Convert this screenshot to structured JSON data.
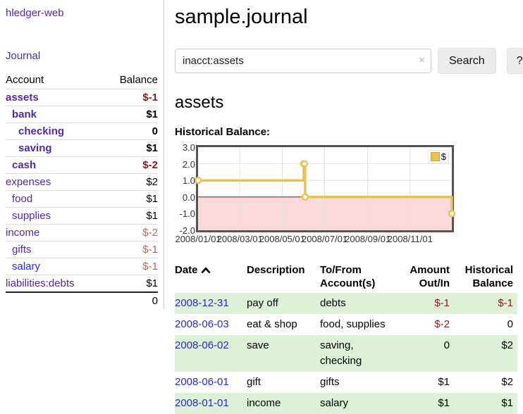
{
  "colors": {
    "purple": "#5229a3",
    "blue": "#2a2ad4",
    "neg-strong": "#8b1a1a",
    "neg-light": "#b06a66",
    "stripe-green": "#def0d8",
    "chart-line": "#e9c351",
    "chart-neg-fill": "#f9d9d9",
    "chart-zero-line": "#8b1a1a"
  },
  "app": {
    "brand": "hledger-web",
    "nav_journal": "Journal"
  },
  "sidebar": {
    "header": {
      "account": "Account",
      "balance": "Balance"
    },
    "rows": [
      {
        "name": "assets",
        "balance": "$-1",
        "depth": 1,
        "bold": true,
        "link": "visited"
      },
      {
        "name": "bank",
        "balance": "$1",
        "depth": 2,
        "bold": true,
        "link": "visited"
      },
      {
        "name": "checking",
        "balance": "0",
        "depth": 3,
        "bold": true,
        "link": "visited"
      },
      {
        "name": "saving",
        "balance": "$1",
        "depth": 3,
        "bold": true,
        "link": "visited"
      },
      {
        "name": "cash",
        "balance": "$-2",
        "depth": 2,
        "bold": true,
        "link": "visited"
      },
      {
        "name": "expenses",
        "balance": "$2",
        "depth": 1,
        "bold": false,
        "link": "visited"
      },
      {
        "name": "food",
        "balance": "$1",
        "depth": 2,
        "bold": false,
        "link": "visited"
      },
      {
        "name": "supplies",
        "balance": "$1",
        "depth": 2,
        "bold": false,
        "link": "visited"
      },
      {
        "name": "income",
        "balance": "$-2",
        "depth": 1,
        "bold": false,
        "link": "visited"
      },
      {
        "name": "gifts",
        "balance": "$-1",
        "depth": 2,
        "bold": false,
        "link": "visited"
      },
      {
        "name": "salary",
        "balance": "$-1",
        "depth": 2,
        "bold": false,
        "link": "unvisited"
      },
      {
        "name": "liabilities:debts",
        "balance": "$1",
        "depth": 1,
        "bold": false,
        "link": "visited"
      }
    ],
    "total": "0"
  },
  "main": {
    "title": "sample.journal",
    "search": {
      "value": "inacct:assets",
      "clear_icon": "×",
      "button_label": "Search",
      "help_label": "?"
    },
    "account_heading": "assets",
    "chart_label": "Historical Balance:"
  },
  "chart_data": {
    "type": "line",
    "step": "after",
    "title": "Historical Balance",
    "legend": [
      {
        "label": "$"
      }
    ],
    "x_range": [
      "2008-01-01",
      "2008-12-31"
    ],
    "ylim": [
      -2,
      3
    ],
    "grid": true,
    "negative_region_shaded": true,
    "x_ticks": [
      {
        "date": "2008-01-01",
        "label": "2008/01/01"
      },
      {
        "date": "2008-03-01",
        "label": "2008/03/01"
      },
      {
        "date": "2008-05-01",
        "label": "2008/05/01"
      },
      {
        "date": "2008-07-01",
        "label": "2008/07/01"
      },
      {
        "date": "2008-09-01",
        "label": "2008/09/01"
      },
      {
        "date": "2008-11-01",
        "label": "2008/11/01"
      }
    ],
    "y_ticks": [
      {
        "value": 3,
        "label": "3.0"
      },
      {
        "value": 2,
        "label": "2.0"
      },
      {
        "value": 1,
        "label": "1.0"
      },
      {
        "value": 0,
        "label": "0.0"
      },
      {
        "value": -1,
        "label": "-1.0"
      },
      {
        "value": -2,
        "label": "-2.0"
      }
    ],
    "series": [
      {
        "name": "$",
        "points": [
          {
            "date": "2008-01-01",
            "value": 1
          },
          {
            "date": "2008-06-01",
            "value": 2
          },
          {
            "date": "2008-06-02",
            "value": 2
          },
          {
            "date": "2008-06-03",
            "value": 0
          },
          {
            "date": "2008-12-31",
            "value": -1
          }
        ]
      }
    ]
  },
  "register": {
    "sort_icon": "chevron-up",
    "headers": {
      "date": {
        "line1": "Date",
        "line2": ""
      },
      "description": {
        "line1": "Description",
        "line2": ""
      },
      "accounts": {
        "line1": "To/From",
        "line2": "Account(s)"
      },
      "amount": {
        "line1": "Amount",
        "line2": "Out/In"
      },
      "balance": {
        "line1": "Historical",
        "line2": "Balance"
      }
    },
    "rows": [
      {
        "date": "2008-12-31",
        "description": "pay off",
        "accounts": "debts",
        "amount": "$-1",
        "balance": "$-1"
      },
      {
        "date": "2008-06-03",
        "description": "eat & shop",
        "accounts": "food, supplies",
        "amount": "$-2",
        "balance": "0"
      },
      {
        "date": "2008-06-02",
        "description": "save",
        "accounts": "saving, checking",
        "amount": "0",
        "balance": "$2"
      },
      {
        "date": "2008-06-01",
        "description": "gift",
        "accounts": "gifts",
        "amount": "$1",
        "balance": "$2"
      },
      {
        "date": "2008-01-01",
        "description": "income",
        "accounts": "salary",
        "amount": "$1",
        "balance": "$1"
      }
    ]
  }
}
